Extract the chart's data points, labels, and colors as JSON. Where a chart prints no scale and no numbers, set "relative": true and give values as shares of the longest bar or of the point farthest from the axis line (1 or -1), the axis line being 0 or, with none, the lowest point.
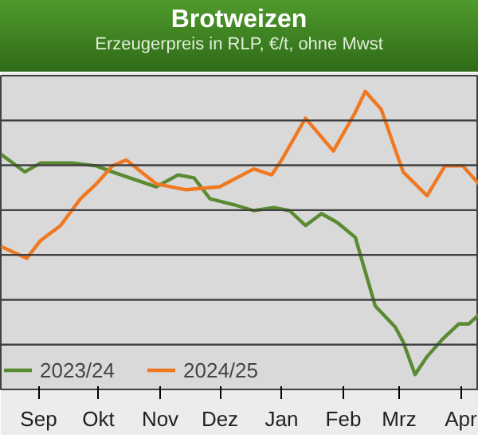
{
  "chart_data": {
    "type": "line",
    "title": "Brotweizen",
    "subtitle": "Erzeugerpreis in RLP, €/t, ohne Mwst",
    "relative": true,
    "xlim": [
      "2024-08-13",
      "2025-04-10"
    ],
    "xticks": [
      {
        "value": "2024-09-01",
        "label": "Sep"
      },
      {
        "value": "2024-10-01",
        "label": "Okt"
      },
      {
        "value": "2024-11-01",
        "label": "Nov"
      },
      {
        "value": "2024-12-01",
        "label": "Dez"
      },
      {
        "value": "2025-01-01",
        "label": "Jan"
      },
      {
        "value": "2025-02-01",
        "label": "Feb"
      },
      {
        "value": "2025-03-01",
        "label": "Mrz"
      },
      {
        "value": "2025-04-01",
        "label": "Apr"
      }
    ],
    "series": [
      {
        "name": "2023/24",
        "color": "#5a8a32",
        "x": [
          "2024-08-13",
          "2024-08-25",
          "2024-09-02",
          "2024-09-18",
          "2024-09-30",
          "2024-10-08",
          "2024-10-30",
          "2024-11-10",
          "2024-11-18",
          "2024-11-26",
          "2024-12-08",
          "2024-12-18",
          "2024-12-28",
          "2025-01-05",
          "2025-01-13",
          "2025-01-21",
          "2025-01-29",
          "2025-02-07",
          "2025-02-17",
          "2025-02-27",
          "2025-03-03",
          "2025-03-09",
          "2025-03-15",
          "2025-03-23",
          "2025-03-31",
          "2025-04-05",
          "2025-04-10"
        ],
        "values": [
          0.79,
          0.73,
          0.76,
          0.76,
          0.75,
          0.73,
          0.68,
          0.72,
          0.71,
          0.64,
          0.62,
          0.6,
          0.61,
          0.6,
          0.55,
          0.59,
          0.56,
          0.51,
          0.28,
          0.21,
          0.16,
          0.05,
          0.11,
          0.17,
          0.22,
          0.22,
          0.25
        ]
      },
      {
        "name": "2024/25",
        "color": "#f07820",
        "x": [
          "2024-08-13",
          "2024-08-26",
          "2024-09-02",
          "2024-09-12",
          "2024-09-22",
          "2024-09-30",
          "2024-10-08",
          "2024-10-15",
          "2024-10-30",
          "2024-11-14",
          "2024-12-01",
          "2024-12-18",
          "2024-12-27",
          "2025-01-01",
          "2025-01-13",
          "2025-01-27",
          "2025-02-07",
          "2025-02-12",
          "2025-02-20",
          "2025-03-03",
          "2025-03-15",
          "2025-03-24",
          "2025-04-02",
          "2025-04-10"
        ],
        "values": [
          0.48,
          0.44,
          0.5,
          0.55,
          0.64,
          0.69,
          0.75,
          0.77,
          0.69,
          0.67,
          0.68,
          0.74,
          0.72,
          0.77,
          0.91,
          0.8,
          0.93,
          1.0,
          0.94,
          0.73,
          0.65,
          0.75,
          0.75,
          0.69
        ]
      }
    ],
    "grid": true,
    "legend": "bottom left"
  }
}
